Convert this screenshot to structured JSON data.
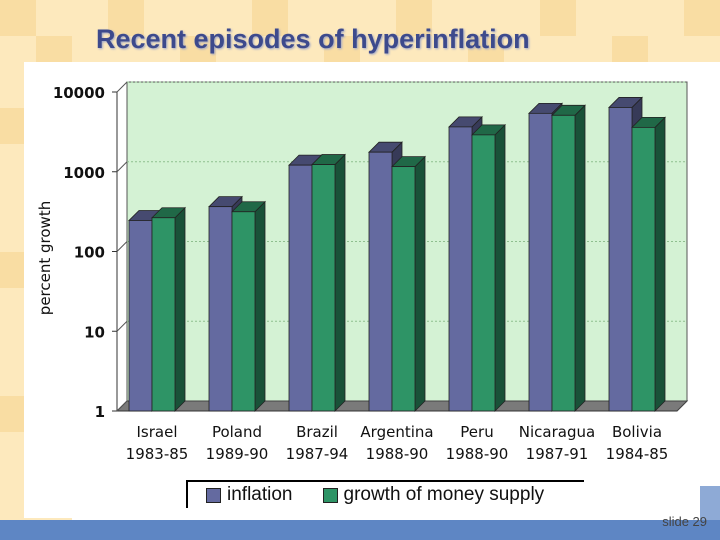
{
  "slide": {
    "title": "Recent episodes of hyperinflation",
    "number_label": "slide 29"
  },
  "legend": {
    "inflation": "inflation",
    "money_growth": "growth of money supply"
  },
  "colors": {
    "inflation": "#646aa0",
    "money_growth": "#2e9466",
    "plot_bg": "#d4f2d4",
    "title": "#3d4a8c"
  },
  "chart_data": {
    "type": "bar",
    "title": "",
    "xlabel": "",
    "ylabel": "percent growth",
    "yscale": "log",
    "ylim": [
      1,
      10000
    ],
    "yticks": [
      1,
      10,
      100,
      1000,
      10000
    ],
    "ytick_labels": [
      "1",
      "10",
      "100",
      "1000",
      "10000"
    ],
    "grid": true,
    "legend_position": "bottom",
    "categories": [
      "Israel",
      "Poland",
      "Brazil",
      "Argentina",
      "Peru",
      "Nicaragua",
      "Bolivia"
    ],
    "category_periods": [
      "1983-85",
      "1989-90",
      "1987-94",
      "1988-90",
      "1988-90",
      "1987-91",
      "1984-85"
    ],
    "series": [
      {
        "name": "inflation",
        "values": [
          245,
          365,
          1210,
          1760,
          3650,
          5400,
          6400
        ]
      },
      {
        "name": "growth of money supply",
        "values": [
          265,
          315,
          1230,
          1160,
          2900,
          5100,
          3600
        ]
      }
    ]
  }
}
